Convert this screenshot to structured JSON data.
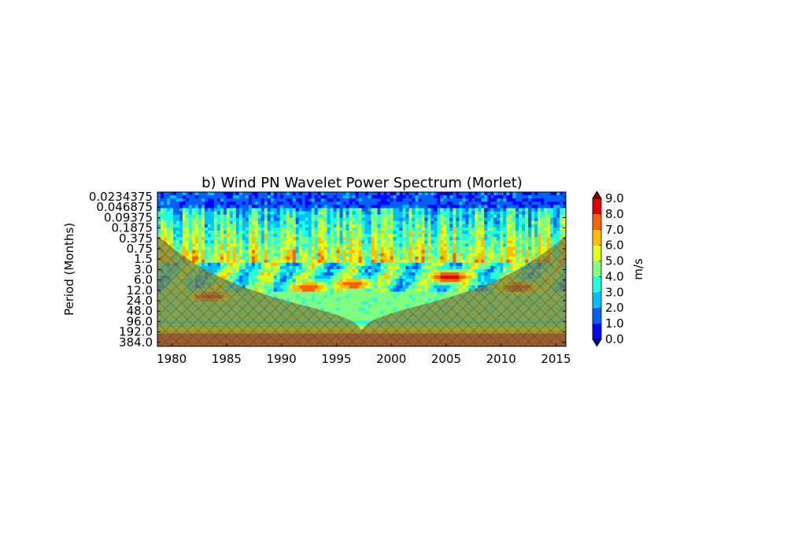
{
  "chart_data": {
    "type": "heatmap",
    "title": "b) Wind PN Wavelet Power Spectrum (Morlet)",
    "xlabel": "",
    "ylabel": "Period (Months)",
    "xlim": [
      1978.7,
      2015.9
    ],
    "x_ticks": [
      1980,
      1985,
      1990,
      1995,
      2000,
      2005,
      2010,
      2015
    ],
    "y_scale": "log2",
    "y_inverted": true,
    "y_ticks": [
      "0.0234375",
      "0.046875",
      "0.09375",
      "0.1875",
      "0.375",
      "0.75",
      "1.5",
      "3.0",
      "6.0",
      "12.0",
      "24.0",
      "48.0",
      "96.0",
      "192.0",
      "384.0"
    ],
    "colorbar": {
      "label": "m/s",
      "ticks": [
        "0.0",
        "1.0",
        "2.0",
        "3.0",
        "4.0",
        "5.0",
        "6.0",
        "7.0",
        "8.0",
        "9.0"
      ],
      "colors": [
        "#00008f",
        "#0000ff",
        "#0060ff",
        "#00bfff",
        "#20ffdf",
        "#80ff80",
        "#dfff20",
        "#ffbf00",
        "#ff6000",
        "#df0000",
        "#800000"
      ],
      "extend": "both"
    },
    "cone_of_influence": {
      "color": "#808040",
      "hatch": "x"
    },
    "high_power_regions": [
      {
        "x_center": 1983.5,
        "period_months": 18,
        "level": 9
      },
      {
        "x_center": 1992.5,
        "period_months": 10,
        "level": 8
      },
      {
        "x_center": 1996.5,
        "period_months": 8,
        "level": 8
      },
      {
        "x_center": 2005.3,
        "period_months": 5,
        "level": 9
      },
      {
        "x_center": 2011.5,
        "period_months": 10,
        "level": 9
      }
    ]
  }
}
